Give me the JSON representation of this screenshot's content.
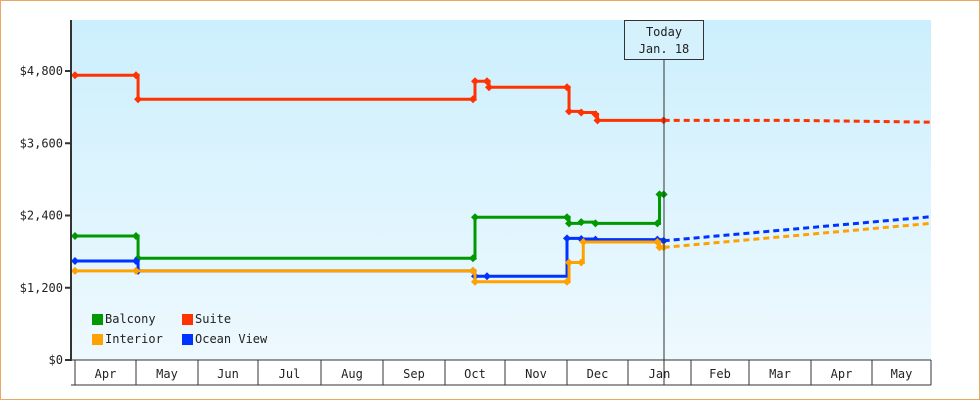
{
  "chart_data": {
    "type": "line",
    "title": "",
    "xlabel": "",
    "ylabel": "",
    "ylim": [
      0,
      5400
    ],
    "y_ticks": [
      "$0",
      "$1,200",
      "$2,400",
      "$3,600",
      "$4,800"
    ],
    "y_tick_values": [
      0,
      1200,
      2400,
      3600,
      4800
    ],
    "x_ticks": [
      "Apr",
      "May",
      "Jun",
      "Jul",
      "Aug",
      "Sep",
      "Oct",
      "Nov",
      "Dec",
      "Jan",
      "Feb",
      "Mar",
      "Apr",
      "May"
    ],
    "annotation": {
      "line1": "Today",
      "line2": "Jan. 18"
    },
    "legend": [
      {
        "name": "Balcony",
        "color": "#009900"
      },
      {
        "name": "Suite",
        "color": "#ff3300"
      },
      {
        "name": "Interior",
        "color": "#ffa200"
      },
      {
        "name": "Ocean View",
        "color": "#0033ff"
      }
    ],
    "series": [
      {
        "name": "Suite",
        "color": "#ff3300",
        "history": [
          [
            "Apr 1",
            4730
          ],
          [
            "May 1",
            4730
          ],
          [
            "May 2",
            4330
          ],
          [
            "Oct 15",
            4330
          ],
          [
            "Oct 16",
            4630
          ],
          [
            "Oct 22",
            4630
          ],
          [
            "Oct 23",
            4530
          ],
          [
            "Dec 1",
            4530
          ],
          [
            "Dec 2",
            4130
          ],
          [
            "Dec 8",
            4110
          ],
          [
            "Dec 15",
            4080
          ],
          [
            "Dec 16",
            3980
          ],
          [
            "Jan 18",
            3980
          ]
        ],
        "forecast": [
          [
            "Jan 18",
            3980
          ],
          [
            "Mar 15",
            3980
          ],
          [
            "May 31",
            3950
          ]
        ]
      },
      {
        "name": "Balcony",
        "color": "#009900",
        "history": [
          [
            "Apr 1",
            2060
          ],
          [
            "May 1",
            2060
          ],
          [
            "May 2",
            1690
          ],
          [
            "Oct 15",
            1690
          ],
          [
            "Oct 16",
            2370
          ],
          [
            "Dec 1",
            2370
          ],
          [
            "Dec 2",
            2270
          ],
          [
            "Dec 8",
            2290
          ],
          [
            "Dec 15",
            2270
          ],
          [
            "Jan 15",
            2270
          ],
          [
            "Jan 16",
            2750
          ],
          [
            "Jan 18",
            2750
          ]
        ],
        "forecast": []
      },
      {
        "name": "Ocean View",
        "color": "#0033ff",
        "history": [
          [
            "Apr 1",
            1645
          ],
          [
            "May 1",
            1645
          ],
          [
            "May 2",
            1480
          ],
          [
            "Oct 15",
            1480
          ],
          [
            "Oct 16",
            1390
          ],
          [
            "Oct 22",
            1390
          ],
          [
            "Dec 1",
            2020
          ],
          [
            "Dec 8",
            2010
          ],
          [
            "Dec 15",
            2000
          ],
          [
            "Jan 15",
            2000
          ],
          [
            "Jan 18",
            1980
          ]
        ],
        "forecast": [
          [
            "Jan 18",
            1980
          ],
          [
            "May 31",
            2380
          ]
        ]
      },
      {
        "name": "Interior",
        "color": "#ffa200",
        "history": [
          [
            "Apr 1",
            1480
          ],
          [
            "May 1",
            1480
          ],
          [
            "Oct 15",
            1480
          ],
          [
            "Oct 16",
            1300
          ],
          [
            "Dec 1",
            1300
          ],
          [
            "Dec 2",
            1620
          ],
          [
            "Dec 8",
            1620
          ],
          [
            "Dec 9",
            1960
          ],
          [
            "Jan 15",
            1960
          ],
          [
            "Jan 16",
            1870
          ],
          [
            "Jan 18",
            1870
          ]
        ],
        "forecast": [
          [
            "Jan 18",
            1870
          ],
          [
            "May 31",
            2270
          ]
        ]
      }
    ]
  }
}
